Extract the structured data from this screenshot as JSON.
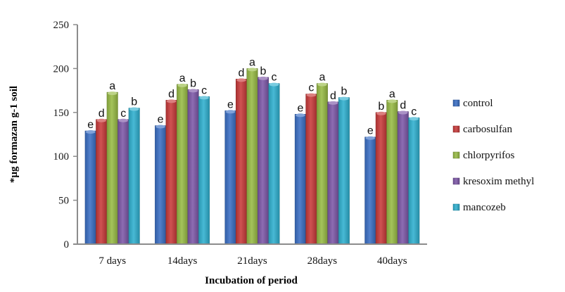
{
  "chart_data": {
    "type": "bar",
    "title": "",
    "xlabel": "Incubation of period",
    "ylabel": "*µg formazan g-1 soil",
    "ylim": [
      0,
      250
    ],
    "yticks": [
      0,
      50,
      100,
      150,
      200,
      250
    ],
    "grid": false,
    "legend_position": "right",
    "categories": [
      "7 days",
      "14days",
      "21days",
      "28days",
      "40days"
    ],
    "series": [
      {
        "name": "control",
        "color": "#3a6fc4",
        "values": [
          129,
          135,
          152,
          148,
          122
        ],
        "labels": [
          "e",
          "e",
          "e",
          "e",
          "e"
        ]
      },
      {
        "name": "carbosulfan",
        "color": "#c83a3a",
        "values": [
          142,
          164,
          188,
          171,
          150
        ],
        "labels": [
          "d",
          "d",
          "d",
          "c",
          "b"
        ]
      },
      {
        "name": "chlorpyrifos",
        "color": "#98bb45",
        "values": [
          173,
          182,
          200,
          183,
          164
        ],
        "labels": [
          "a",
          "a",
          "a",
          "a",
          "a"
        ]
      },
      {
        "name": "kresoxim methyl",
        "color": "#7d58a8",
        "values": [
          142,
          176,
          190,
          162,
          151
        ],
        "labels": [
          "c",
          "b",
          "b",
          "d",
          "d"
        ]
      },
      {
        "name": "mancozeb",
        "color": "#2fb0cf",
        "values": [
          155,
          168,
          183,
          167,
          144
        ],
        "labels": [
          "b",
          "c",
          "c",
          "b",
          "c"
        ]
      }
    ]
  }
}
